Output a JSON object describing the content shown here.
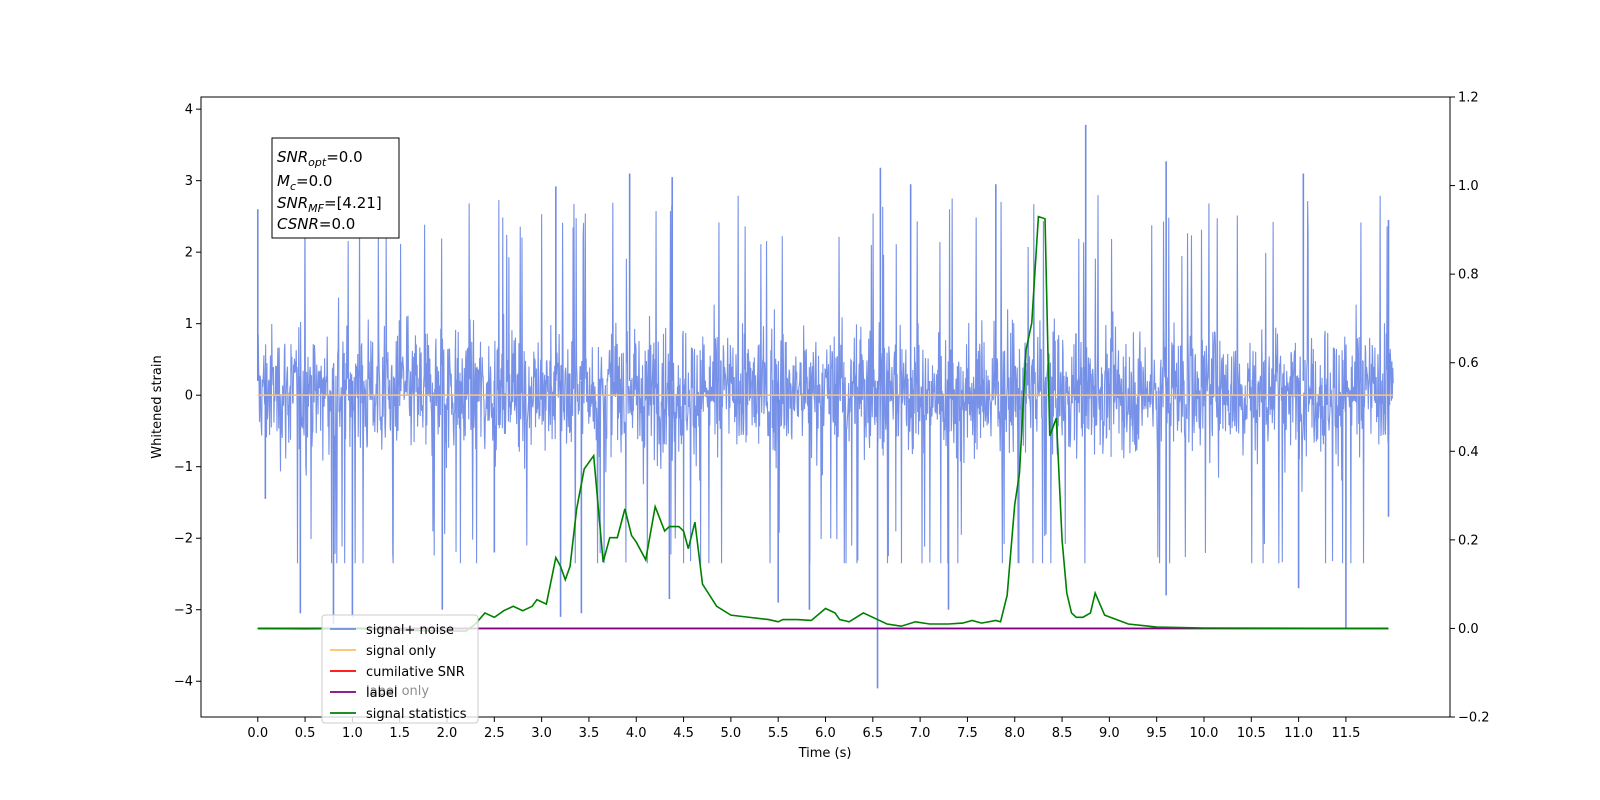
{
  "chart_data": {
    "type": "line",
    "title": "",
    "xlabel": "Time (s)",
    "ylabel": "Whitened strain",
    "y2label": "",
    "xlim": [
      -0.6,
      12.6
    ],
    "ylim": [
      -4.5,
      4.17
    ],
    "y2lim": [
      -0.2,
      1.2
    ],
    "x_ticks": [
      0.0,
      0.5,
      1.0,
      1.5,
      2.0,
      2.5,
      3.0,
      3.5,
      4.0,
      4.5,
      5.0,
      5.5,
      6.0,
      6.5,
      7.0,
      7.5,
      8.0,
      8.5,
      9.0,
      9.5,
      10.0,
      10.5,
      11.0,
      11.5
    ],
    "x_tick_labels": [
      "0.0",
      "0.5",
      "1.0",
      "1.5",
      "2.0",
      "2.5",
      "3.0",
      "3.5",
      "4.0",
      "4.5",
      "5.0",
      "5.5",
      "6.0",
      "6.5",
      "7.0",
      "7.5",
      "8.0",
      "8.5",
      "9.0",
      "9.5",
      "10.0",
      "10.5",
      "11.0",
      "11.5"
    ],
    "y_ticks": [
      -4,
      -3,
      -2,
      -1,
      0,
      1,
      2,
      3,
      4
    ],
    "y_tick_labels": [
      "−4",
      "−3",
      "−2",
      "−1",
      "0",
      "1",
      "2",
      "3",
      "4"
    ],
    "y2_ticks": [
      -0.2,
      0.0,
      0.2,
      0.4,
      0.6,
      0.8,
      1.0,
      1.2
    ],
    "y2_tick_labels": [
      "−0.2",
      "0.0",
      "0.2",
      "0.4",
      "0.6",
      "0.8",
      "1.0",
      "1.2"
    ],
    "grid": false,
    "legend_position": "lower-left",
    "series": [
      {
        "name": "signal+ noise",
        "axis": "left",
        "color": "#6f8be6",
        "style": "noise",
        "x_range": [
          0.0,
          12.0
        ],
        "band": [
          -1.5,
          1.9
        ],
        "peaks": [
          {
            "x": 0.0,
            "y": 2.6
          },
          {
            "x": 0.08,
            "y": -1.45
          },
          {
            "x": 0.45,
            "y": -3.05
          },
          {
            "x": 0.8,
            "y": -3.2
          },
          {
            "x": 1.0,
            "y": -3.1
          },
          {
            "x": 1.95,
            "y": -3.0
          },
          {
            "x": 2.5,
            "y": -2.2
          },
          {
            "x": 3.15,
            "y": 2.92
          },
          {
            "x": 3.2,
            "y": -3.1
          },
          {
            "x": 3.42,
            "y": -3.05
          },
          {
            "x": 3.93,
            "y": 3.1
          },
          {
            "x": 4.35,
            "y": -2.85
          },
          {
            "x": 4.38,
            "y": 3.05
          },
          {
            "x": 5.5,
            "y": -2.9
          },
          {
            "x": 5.83,
            "y": -3.0
          },
          {
            "x": 6.58,
            "y": 3.18
          },
          {
            "x": 6.55,
            "y": -4.1
          },
          {
            "x": 6.9,
            "y": 2.95
          },
          {
            "x": 7.3,
            "y": -3.0
          },
          {
            "x": 7.8,
            "y": 2.95
          },
          {
            "x": 8.75,
            "y": 3.78
          },
          {
            "x": 9.6,
            "y": 3.27
          },
          {
            "x": 9.6,
            "y": -2.8
          },
          {
            "x": 11.5,
            "y": -3.25
          },
          {
            "x": 11.05,
            "y": 3.1
          },
          {
            "x": 11.0,
            "y": -2.7
          },
          {
            "x": 11.95,
            "y": 2.45
          },
          {
            "x": 11.95,
            "y": -1.7
          }
        ]
      },
      {
        "name": "signal only",
        "axis": "left",
        "color": "#ffbf66",
        "x": [
          0.0,
          12.0
        ],
        "y": [
          0.0,
          0.0
        ]
      },
      {
        "name": "cumilative SNR",
        "axis": "right",
        "color": "#ff0000",
        "x": [
          0.0,
          11.95
        ],
        "y": [
          0.0,
          0.0
        ]
      },
      {
        "name": "label",
        "axis": "right",
        "color": "#800080",
        "x": [
          0.0,
          11.95
        ],
        "y": [
          0.0,
          0.0
        ]
      },
      {
        "name": "label only",
        "axis": "right",
        "color": "#800080",
        "legend_hidden": true,
        "x": [],
        "y": []
      },
      {
        "name": "signal statistics",
        "axis": "right",
        "color": "#008000",
        "x": [
          0.0,
          0.5,
          1.0,
          1.5,
          2.0,
          2.2,
          2.3,
          2.4,
          2.5,
          2.6,
          2.7,
          2.8,
          2.9,
          2.95,
          3.05,
          3.15,
          3.2,
          3.25,
          3.3,
          3.37,
          3.45,
          3.55,
          3.65,
          3.72,
          3.8,
          3.88,
          3.95,
          4.0,
          4.1,
          4.2,
          4.3,
          4.35,
          4.45,
          4.5,
          4.55,
          4.62,
          4.7,
          4.85,
          5.0,
          5.2,
          5.4,
          5.5,
          5.55,
          5.7,
          5.85,
          6.0,
          6.1,
          6.15,
          6.25,
          6.4,
          6.55,
          6.65,
          6.8,
          6.95,
          7.1,
          7.3,
          7.45,
          7.55,
          7.65,
          7.8,
          7.85,
          7.92,
          8.0,
          8.05,
          8.12,
          8.18,
          8.25,
          8.32,
          8.37,
          8.44,
          8.5,
          8.55,
          8.6,
          8.65,
          8.72,
          8.8,
          8.85,
          8.95,
          9.2,
          9.5,
          10.0,
          11.95
        ],
        "y": [
          0.0,
          -0.001,
          0.0,
          -0.004,
          -0.006,
          -0.006,
          0.01,
          0.035,
          0.025,
          0.04,
          0.05,
          0.04,
          0.05,
          0.065,
          0.055,
          0.16,
          0.14,
          0.11,
          0.14,
          0.27,
          0.36,
          0.39,
          0.15,
          0.205,
          0.205,
          0.27,
          0.21,
          0.195,
          0.155,
          0.275,
          0.22,
          0.23,
          0.23,
          0.22,
          0.18,
          0.24,
          0.1,
          0.05,
          0.03,
          0.025,
          0.02,
          0.015,
          0.02,
          0.02,
          0.018,
          0.045,
          0.035,
          0.02,
          0.015,
          0.035,
          0.02,
          0.01,
          0.005,
          0.015,
          0.01,
          0.01,
          0.012,
          0.018,
          0.012,
          0.018,
          0.015,
          0.075,
          0.28,
          0.35,
          0.63,
          0.69,
          0.93,
          0.925,
          0.435,
          0.475,
          0.2,
          0.08,
          0.035,
          0.025,
          0.025,
          0.035,
          0.08,
          0.03,
          0.01,
          0.003,
          0.001,
          0.0
        ]
      }
    ],
    "stats_box": {
      "snr_opt": {
        "sym": "SNR",
        "sub": "opt",
        "value": "=0.0"
      },
      "mc": {
        "sym": "M",
        "sub": "c",
        "value": "=0.0"
      },
      "snr_mf": {
        "sym": "SNR",
        "sub": "MF",
        "value": "=[4.21]"
      },
      "csnr": {
        "sym": "CSNR",
        "sub": "",
        "value": "=0.0"
      }
    }
  }
}
